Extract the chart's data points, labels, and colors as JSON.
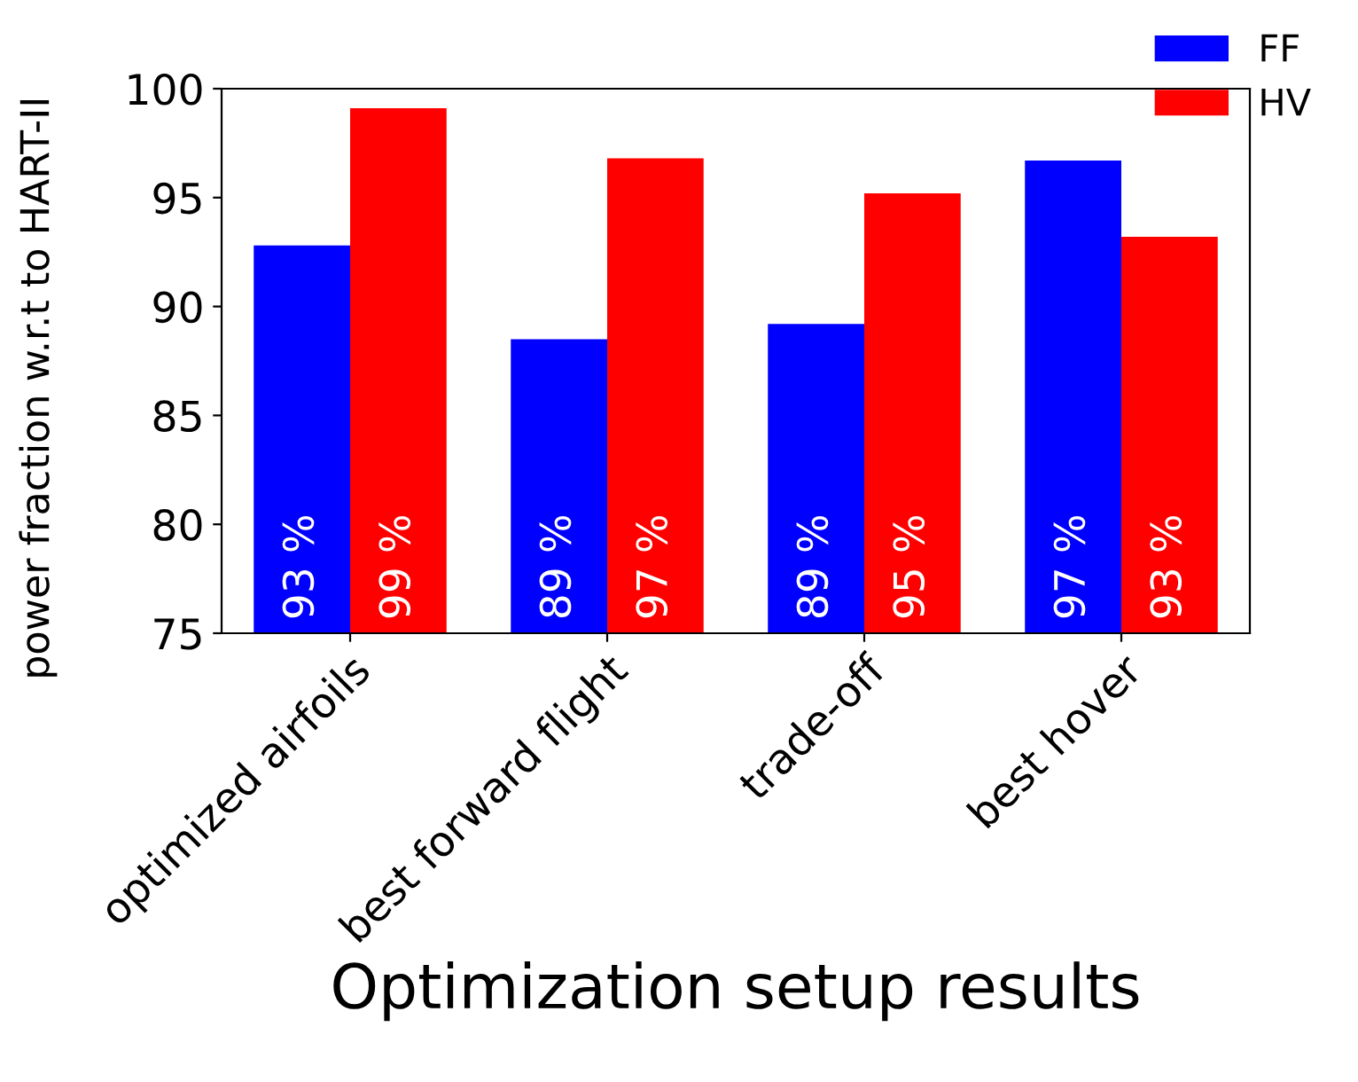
{
  "chart_data": {
    "type": "bar",
    "xlabel": "Optimization setup results",
    "ylabel": "power fraction w.r.t to HART-II",
    "categories": [
      "optimized airfoils",
      "best forward flight",
      "trade-off",
      "best hover"
    ],
    "series": [
      {
        "name": "FF",
        "color": "#0000ff",
        "values": [
          92.8,
          88.5,
          89.2,
          96.7
        ],
        "value_labels": [
          "93 %",
          "89 %",
          "89 %",
          "97 %"
        ]
      },
      {
        "name": "HV",
        "color": "#ff0000",
        "values": [
          99.1,
          96.8,
          95.2,
          93.2
        ],
        "value_labels": [
          "99 %",
          "97 %",
          "95 %",
          "93 %"
        ]
      }
    ],
    "ylim": [
      75,
      100
    ],
    "yticks": [
      75,
      80,
      85,
      90,
      95,
      100
    ],
    "grid": false,
    "legend": "top right"
  }
}
